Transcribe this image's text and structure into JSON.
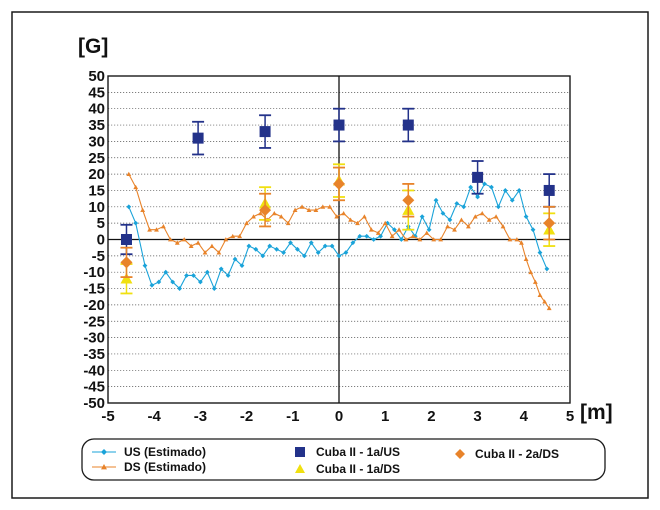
{
  "chart_data": {
    "type": "line",
    "y_unit_label": "[G]",
    "x_unit_label": "[m]",
    "xlim": [
      -5,
      5
    ],
    "ylim": [
      -50,
      50
    ],
    "x_ticks": [
      -5,
      -4,
      -3,
      -2,
      -1,
      0,
      1,
      2,
      3,
      4,
      5
    ],
    "y_ticks": [
      50,
      45,
      40,
      35,
      30,
      25,
      20,
      15,
      10,
      5,
      0,
      -5,
      -10,
      -15,
      -20,
      -25,
      -30,
      -35,
      -40,
      -45,
      -50
    ],
    "grid": {
      "horizontal": true,
      "style": "dotted"
    },
    "legend_position": "bottom",
    "series": [
      {
        "name": "US (Estimado)",
        "kind": "line",
        "marker": "diamond",
        "color": "#1aa3d9",
        "x": [
          -4.55,
          -4.4,
          -4.2,
          -4.05,
          -3.9,
          -3.75,
          -3.6,
          -3.45,
          -3.3,
          -3.15,
          -3.0,
          -2.85,
          -2.7,
          -2.55,
          -2.4,
          -2.25,
          -2.1,
          -1.95,
          -1.8,
          -1.65,
          -1.5,
          -1.35,
          -1.2,
          -1.05,
          -0.9,
          -0.75,
          -0.6,
          -0.45,
          -0.3,
          -0.15,
          0.0,
          0.15,
          0.3,
          0.45,
          0.6,
          0.75,
          0.9,
          1.05,
          1.2,
          1.35,
          1.5,
          1.65,
          1.8,
          1.95,
          2.1,
          2.25,
          2.4,
          2.55,
          2.7,
          2.85,
          3.0,
          3.15,
          3.3,
          3.45,
          3.6,
          3.75,
          3.9,
          4.05,
          4.2,
          4.35,
          4.5
        ],
        "y": [
          10,
          5,
          -8,
          -14,
          -13,
          -10,
          -13,
          -15,
          -11,
          -11,
          -13,
          -10,
          -15,
          -9,
          -11,
          -6,
          -8,
          -2,
          -3,
          -5,
          -2,
          -3,
          -4,
          -1,
          -3,
          -5,
          -1,
          -4,
          -2,
          -2,
          -5,
          -4,
          -1,
          1,
          1,
          0,
          1,
          5,
          3,
          0,
          4,
          1,
          7,
          3,
          12,
          8,
          6,
          11,
          10,
          16,
          13,
          17,
          16,
          10,
          15,
          12,
          15,
          7,
          3,
          -4,
          -9
        ]
      },
      {
        "name": "DS (Estimado)",
        "kind": "line",
        "marker": "triangle",
        "color": "#e8832a",
        "x": [
          -4.55,
          -4.4,
          -4.25,
          -4.1,
          -3.95,
          -3.8,
          -3.65,
          -3.5,
          -3.35,
          -3.2,
          -3.05,
          -2.9,
          -2.75,
          -2.6,
          -2.45,
          -2.3,
          -2.15,
          -2.0,
          -1.85,
          -1.7,
          -1.55,
          -1.4,
          -1.25,
          -1.1,
          -0.95,
          -0.8,
          -0.65,
          -0.5,
          -0.35,
          -0.2,
          -0.05,
          0.1,
          0.25,
          0.4,
          0.55,
          0.7,
          0.85,
          1.0,
          1.15,
          1.3,
          1.45,
          1.6,
          1.75,
          1.9,
          2.05,
          2.2,
          2.35,
          2.5,
          2.65,
          2.8,
          2.95,
          3.1,
          3.25,
          3.4,
          3.55,
          3.7,
          3.85,
          3.95,
          4.05,
          4.15,
          4.25,
          4.35,
          4.45,
          4.55
        ],
        "y": [
          20,
          16,
          9,
          3,
          3,
          4,
          0,
          -1,
          0,
          -2,
          -1,
          -4,
          -2,
          -4,
          0,
          1,
          1,
          5,
          7,
          8,
          6,
          8,
          7,
          5,
          9,
          10,
          9,
          9,
          10,
          10,
          7,
          8,
          6,
          5,
          7,
          3,
          2,
          5,
          1,
          3,
          0,
          1,
          0,
          2,
          0,
          0,
          4,
          3,
          6,
          4,
          7,
          8,
          6,
          7,
          4,
          0,
          0,
          -1,
          -6,
          -10,
          -13,
          -17,
          -19,
          -21
        ]
      },
      {
        "name": "Cuba II - 1a/US",
        "kind": "points",
        "marker": "square",
        "color": "#23328a",
        "x": [
          -4.6,
          -3.05,
          -1.6,
          0.0,
          1.5,
          3.0,
          4.55
        ],
        "y": [
          0,
          31,
          33,
          35,
          35,
          19,
          15
        ],
        "err": [
          4.5,
          5,
          5,
          5,
          5,
          5,
          5
        ]
      },
      {
        "name": "Cuba II - 1a/DS",
        "kind": "points",
        "marker": "triangle",
        "color": "#f0e010",
        "x": [
          -4.6,
          -1.6,
          0.0,
          1.5,
          4.55
        ],
        "y": [
          -12,
          11,
          18,
          9,
          3
        ],
        "err": [
          4.5,
          5,
          5,
          6,
          5
        ]
      },
      {
        "name": "Cuba II - 2a/DS",
        "kind": "points",
        "marker": "diamond",
        "color": "#e8832a",
        "x": [
          -4.6,
          -1.6,
          0.0,
          1.5,
          4.55
        ],
        "y": [
          -7,
          9,
          17,
          12,
          5
        ],
        "err": [
          4.5,
          5,
          5,
          5,
          5
        ]
      }
    ]
  }
}
